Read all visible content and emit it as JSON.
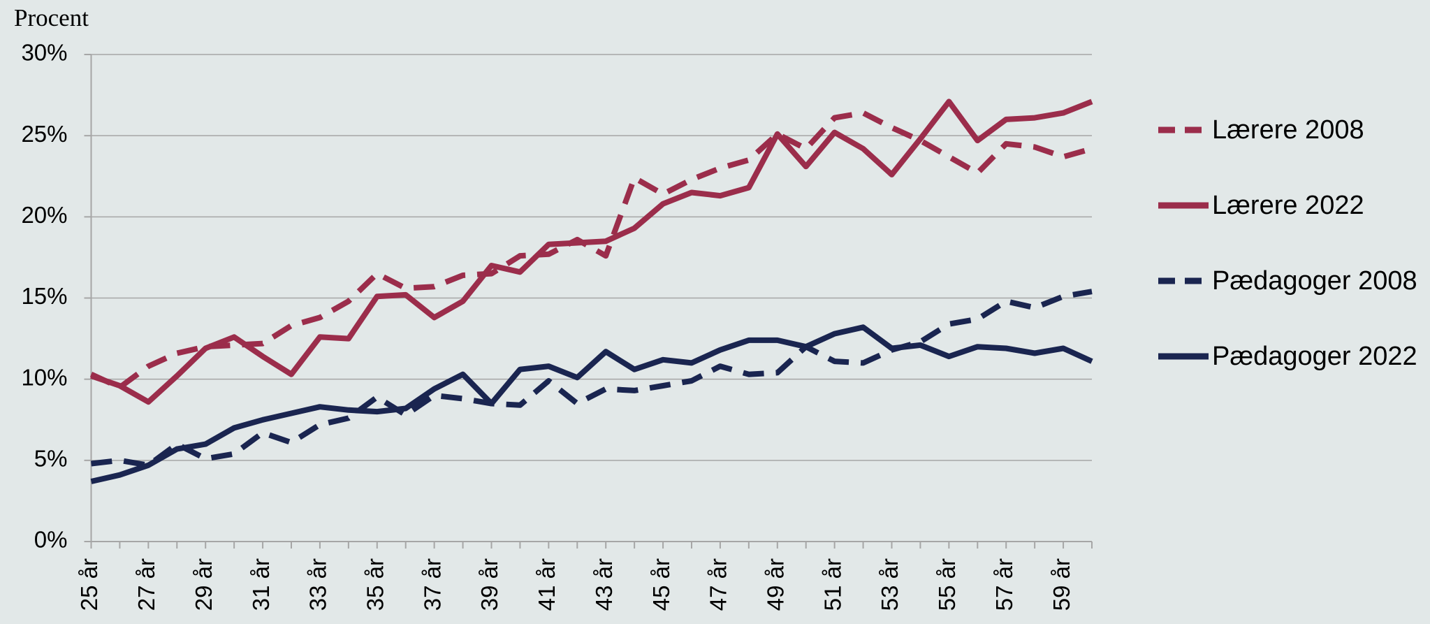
{
  "chart_data": {
    "type": "line",
    "y_label": "Procent",
    "categories": [
      "25 år",
      null,
      "27 år",
      null,
      "29 år",
      null,
      "31 år",
      null,
      "33 år",
      null,
      "35 år",
      null,
      "37 år",
      null,
      "39 år",
      null,
      "41 år",
      null,
      "43 år",
      null,
      "45 år",
      null,
      "47 år",
      null,
      "49 år",
      null,
      "51 år",
      null,
      "53 år",
      null,
      "55 år",
      null,
      "57 år",
      null,
      "59 år",
      null
    ],
    "series": [
      {
        "name": "Lærere 2008",
        "color": "#9b2d4b",
        "dashed": true,
        "values": [
          10.3,
          9.5,
          10.8,
          11.6,
          12.0,
          12.1,
          12.2,
          13.3,
          13.8,
          14.8,
          16.5,
          15.6,
          15.7,
          16.4,
          16.5,
          17.6,
          17.7,
          18.6,
          17.6,
          22.4,
          21.4,
          22.3,
          23.0,
          23.5,
          25.1,
          24.2,
          26.1,
          26.4,
          25.5,
          24.7,
          23.7,
          22.7,
          24.5,
          24.3,
          23.7,
          24.2
        ]
      },
      {
        "name": "Lærere 2022",
        "color": "#9b2d4b",
        "dashed": false,
        "values": [
          10.2,
          9.6,
          8.6,
          10.2,
          11.9,
          12.6,
          11.4,
          10.3,
          12.6,
          12.5,
          15.1,
          15.2,
          13.8,
          14.8,
          17.0,
          16.6,
          18.3,
          18.4,
          18.5,
          19.3,
          20.8,
          21.5,
          21.3,
          21.8,
          25.1,
          23.1,
          25.2,
          24.2,
          22.6,
          24.8,
          27.1,
          24.7,
          26.0,
          26.1,
          26.4,
          27.1
        ]
      },
      {
        "name": "Pædagoger 2008",
        "color": "#1a2550",
        "dashed": true,
        "values": [
          4.8,
          5.0,
          4.7,
          6.0,
          5.1,
          5.4,
          6.7,
          6.1,
          7.2,
          7.6,
          8.9,
          7.8,
          9.0,
          8.8,
          8.5,
          8.4,
          9.9,
          8.5,
          9.4,
          9.3,
          9.6,
          9.9,
          10.8,
          10.3,
          10.4,
          12.0,
          11.1,
          11.0,
          11.8,
          12.3,
          13.4,
          13.7,
          14.8,
          14.4,
          15.1,
          15.4
        ]
      },
      {
        "name": "Pædagoger 2022",
        "color": "#1a2550",
        "dashed": false,
        "values": [
          3.7,
          4.1,
          4.7,
          5.7,
          6.0,
          7.0,
          7.5,
          7.9,
          8.3,
          8.1,
          8.0,
          8.2,
          9.4,
          10.3,
          8.5,
          10.6,
          10.8,
          10.1,
          11.7,
          10.6,
          11.2,
          11.0,
          11.8,
          12.4,
          12.4,
          12.0,
          12.8,
          13.2,
          11.9,
          12.1,
          11.4,
          12.0,
          11.9,
          11.6,
          11.9,
          11.1
        ]
      }
    ],
    "ylim": [
      0,
      30
    ],
    "yticks": [
      {
        "value": 0,
        "label": "0%"
      },
      {
        "value": 5,
        "label": "5%"
      },
      {
        "value": 10,
        "label": "10%"
      },
      {
        "value": 15,
        "label": "15%"
      },
      {
        "value": 20,
        "label": "20%"
      },
      {
        "value": 25,
        "label": "25%"
      },
      {
        "value": 30,
        "label": "30%"
      }
    ],
    "grid": true,
    "legend": "right"
  }
}
